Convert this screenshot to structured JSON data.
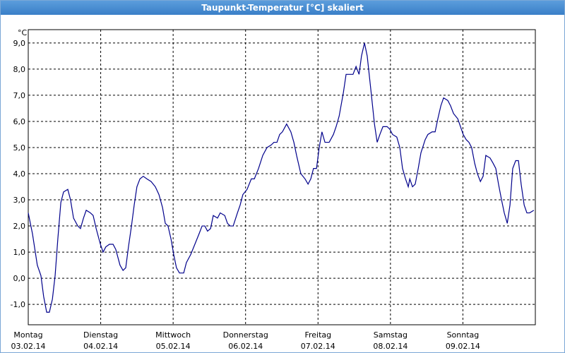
{
  "chart_data": {
    "type": "line",
    "title": "Taupunkt-Temperatur [°C] skaliert",
    "y_unit": "°C",
    "color": "#00008b",
    "grid": true,
    "xlim": [
      0,
      168
    ],
    "xticks": [
      {
        "value": 0,
        "label": [
          "Montag",
          "03.02.14"
        ]
      },
      {
        "value": 24,
        "label": [
          "Dienstag",
          "04.02.14"
        ]
      },
      {
        "value": 48,
        "label": [
          "Mittwoch",
          "05.02.14"
        ]
      },
      {
        "value": 72,
        "label": [
          "Donnerstag",
          "06.02.14"
        ]
      },
      {
        "value": 96,
        "label": [
          "Freitag",
          "07.02.14"
        ]
      },
      {
        "value": 120,
        "label": [
          "Samstag",
          "08.02.14"
        ]
      },
      {
        "value": 144,
        "label": [
          "Sonntag",
          "09.02.14"
        ]
      }
    ],
    "ylim": [
      -1.78,
      9.51
    ],
    "yticks": [
      {
        "value": -1,
        "label": "-1,0"
      },
      {
        "value": 0,
        "label": "0,0"
      },
      {
        "value": 1,
        "label": "1,0"
      },
      {
        "value": 2,
        "label": "2,0"
      },
      {
        "value": 3,
        "label": "3,0"
      },
      {
        "value": 4,
        "label": "4,0"
      },
      {
        "value": 5,
        "label": "5,0"
      },
      {
        "value": 6,
        "label": "6,0"
      },
      {
        "value": 7,
        "label": "7,0"
      },
      {
        "value": 8,
        "label": "8,0"
      },
      {
        "value": 9,
        "label": "9,0"
      }
    ],
    "x": [
      0,
      1.4,
      3.0,
      4.2,
      5.1,
      6.1,
      7.0,
      8.0,
      8.9,
      9.8,
      10.8,
      11.7,
      13.1,
      14.0,
      15.0,
      16.4,
      17.3,
      18.3,
      19.2,
      20.6,
      21.5,
      22.5,
      23.9,
      24.8,
      25.7,
      26.9,
      28.1,
      29.0,
      30.4,
      31.4,
      32.3,
      33.2,
      34.2,
      35.1,
      36.0,
      37.0,
      38.1,
      39.3,
      40.7,
      42.1,
      43.3,
      44.5,
      45.4,
      46.3,
      47.3,
      48.2,
      49.1,
      50.1,
      51.5,
      52.4,
      53.8,
      55.2,
      56.6,
      57.6,
      58.5,
      59.4,
      60.4,
      61.3,
      62.7,
      63.6,
      65.1,
      66.0,
      66.9,
      67.9,
      69.3,
      70.2,
      71.1,
      72.5,
      73.9,
      74.9,
      76.3,
      77.7,
      79.1,
      80.5,
      81.4,
      82.4,
      83.3,
      84.2,
      85.6,
      87.0,
      88.0,
      88.9,
      90.3,
      91.7,
      92.7,
      93.6,
      94.5,
      95.5,
      96.4,
      97.3,
      98.3,
      99.7,
      101.1,
      102.0,
      103.0,
      104.4,
      105.3,
      106.7,
      107.6,
      108.6,
      109.6,
      110.4,
      111.4,
      112.3,
      113.7,
      114.7,
      115.6,
      116.5,
      117.5,
      118.9,
      119.8,
      120.7,
      122.1,
      123.1,
      124.0,
      125.0,
      125.9,
      126.4,
      127.3,
      128.2,
      129.2,
      130.1,
      131.5,
      132.4,
      133.8,
      134.8,
      135.7,
      136.7,
      137.6,
      139.0,
      139.9,
      140.9,
      142.3,
      143.2,
      144.1,
      145.1,
      146.0,
      146.9,
      147.9,
      148.8,
      149.8,
      150.7,
      151.6,
      153.0,
      154.0,
      154.9,
      155.8,
      156.8,
      157.7,
      158.7,
      159.6,
      160.5,
      161.5,
      162.4,
      163.3,
      164.3,
      165.2,
      166.1,
      167.5
    ],
    "values": [
      2.5,
      1.7,
      0.5,
      0.1,
      -0.7,
      -1.3,
      -1.3,
      -0.8,
      0.1,
      1.5,
      2.9,
      3.3,
      3.4,
      3.0,
      2.3,
      2.0,
      1.9,
      2.3,
      2.6,
      2.5,
      2.4,
      1.9,
      1.3,
      1.0,
      1.2,
      1.3,
      1.3,
      1.1,
      0.5,
      0.3,
      0.4,
      1.2,
      2.0,
      2.8,
      3.5,
      3.8,
      3.9,
      3.8,
      3.7,
      3.5,
      3.2,
      2.7,
      2.1,
      2.0,
      1.5,
      0.9,
      0.4,
      0.2,
      0.2,
      0.6,
      0.9,
      1.3,
      1.7,
      2.0,
      2.0,
      1.8,
      1.9,
      2.4,
      2.3,
      2.5,
      2.4,
      2.1,
      2.0,
      2.0,
      2.5,
      2.8,
      3.2,
      3.4,
      3.8,
      3.8,
      4.2,
      4.7,
      5.0,
      5.1,
      5.2,
      5.2,
      5.5,
      5.6,
      5.9,
      5.6,
      5.2,
      4.7,
      4.0,
      3.8,
      3.6,
      3.8,
      4.2,
      4.2,
      5.0,
      5.6,
      5.2,
      5.2,
      5.5,
      5.8,
      6.2,
      7.1,
      7.8,
      7.8,
      7.8,
      8.1,
      7.8,
      8.5,
      9.0,
      8.5,
      7.0,
      5.9,
      5.2,
      5.5,
      5.8,
      5.8,
      5.7,
      5.5,
      5.4,
      5.0,
      4.2,
      3.8,
      3.5,
      3.8,
      3.5,
      3.6,
      4.2,
      4.8,
      5.3,
      5.5,
      5.6,
      5.6,
      6.1,
      6.6,
      6.9,
      6.8,
      6.6,
      6.3,
      6.1,
      5.8,
      5.5,
      5.3,
      5.2,
      5.0,
      4.4,
      4.0,
      3.7,
      3.9,
      4.7,
      4.6,
      4.4,
      4.2,
      3.6,
      3.0,
      2.5,
      2.1,
      2.8,
      4.2,
      4.5,
      4.5,
      3.6,
      2.8,
      2.5,
      2.5,
      2.6
    ]
  }
}
